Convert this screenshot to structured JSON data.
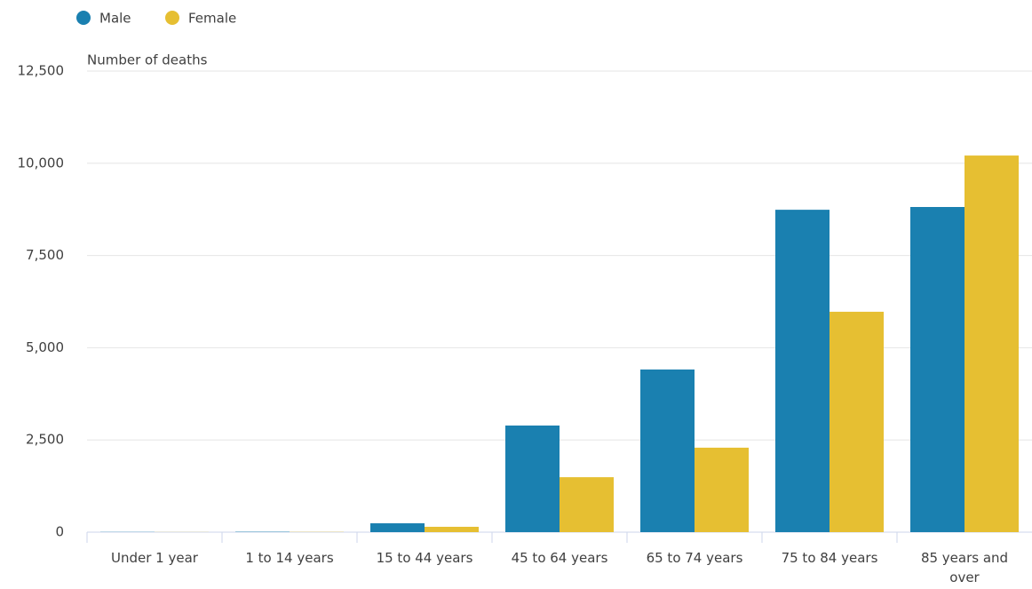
{
  "chart_data": {
    "type": "bar",
    "y_label": "Number of deaths",
    "categories": [
      "Under 1 year",
      "1 to 14 years",
      "15 to 44 years",
      "45 to 64 years",
      "65 to 74 years",
      "75 to 84 years",
      "85 years and over"
    ],
    "series": [
      {
        "name": "Male",
        "color": "#1a80b0",
        "values": [
          5,
          10,
          240,
          2890,
          4410,
          8740,
          8815
        ]
      },
      {
        "name": "Female",
        "color": "#e6bf32",
        "values": [
          3,
          6,
          145,
          1490,
          2290,
          5975,
          10210
        ]
      }
    ],
    "ylim": [
      0,
      12500
    ],
    "yticks": [
      0,
      {
        "value": 2500,
        "label": "2,500"
      },
      {
        "value": 5000,
        "label": "5,000"
      },
      {
        "value": 7500,
        "label": "7,500"
      },
      {
        "value": 10000,
        "label": "10,000"
      },
      {
        "value": 12500,
        "label": "12,500"
      }
    ],
    "grid": true
  }
}
